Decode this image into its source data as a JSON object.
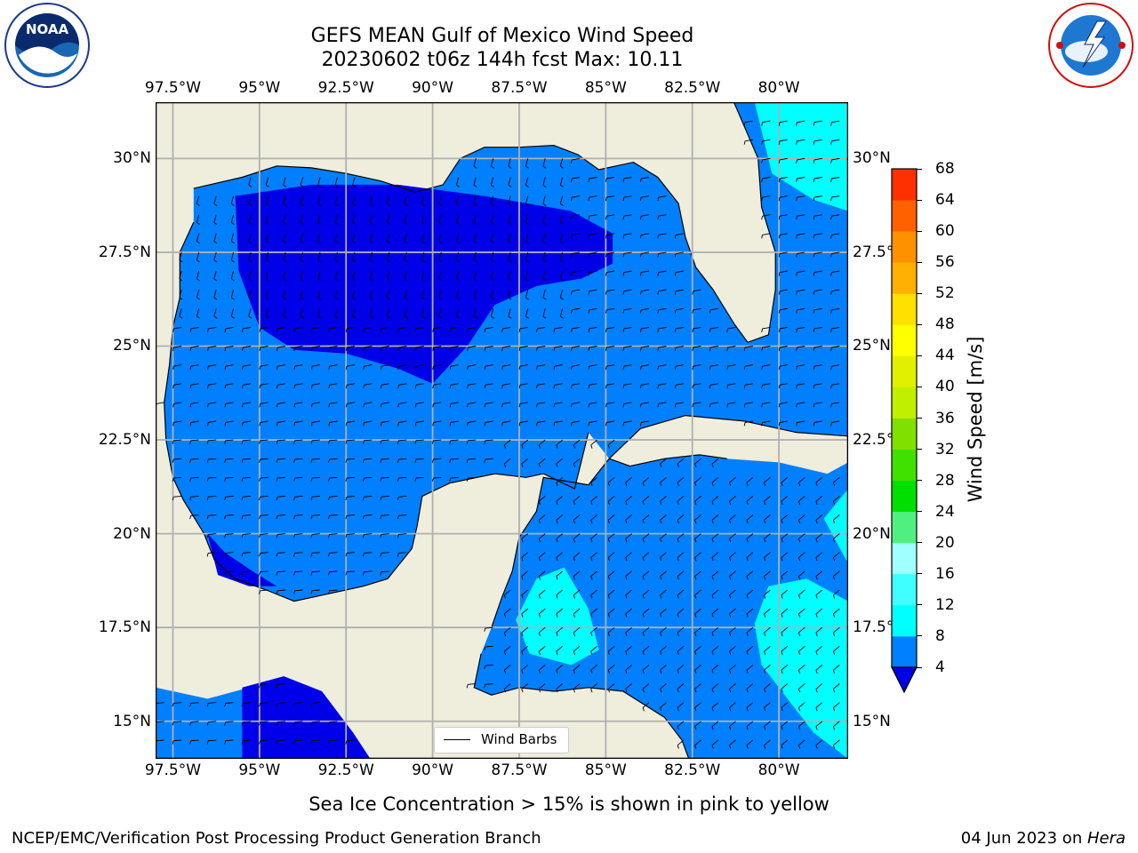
{
  "header": {
    "title_line1": "GEFS MEAN Gulf of Mexico Wind Speed",
    "title_line2": "20230602 t06z 144h fcst   Max: 10.11"
  },
  "logos": {
    "left": {
      "name": "noaa-logo",
      "text": "NOAA",
      "ring_text": "NATIONAL OCEANIC AND ATMOSPHERIC ADMINISTRATION · U.S. DEPARTMENT OF COMMERCE"
    },
    "right": {
      "name": "nws-logo",
      "ring_text": "NATIONAL WEATHER SERVICE"
    }
  },
  "map": {
    "lon_labels": [
      "97.5°W",
      "95°W",
      "92.5°W",
      "90°W",
      "87.5°W",
      "85°W",
      "82.5°W",
      "80°W"
    ],
    "lat_labels": [
      "30°N",
      "27.5°N",
      "25°N",
      "22.5°N",
      "20°N",
      "17.5°N",
      "15°N"
    ],
    "lon_range": [
      -98,
      -78
    ],
    "lat_range": [
      14,
      31.5
    ],
    "legend_label": "Wind Barbs",
    "colors": {
      "land": "#efeddc",
      "ws_4_8": "#0080ff",
      "ws_below_4": "#0000e8",
      "ws_8_12": "#00ffff",
      "coast": "#000000",
      "grid": "#b0b0b0"
    }
  },
  "colorbar": {
    "label": "Wind Speed [m/s]",
    "ticks": [
      "4",
      "8",
      "12",
      "16",
      "20",
      "24",
      "28",
      "32",
      "36",
      "40",
      "44",
      "48",
      "52",
      "56",
      "60",
      "64",
      "68"
    ],
    "colors": [
      "#0080ff",
      "#00ffff",
      "#40ffff",
      "#a0ffff",
      "#50f080",
      "#00e000",
      "#40e000",
      "#80e000",
      "#c0f000",
      "#e0f000",
      "#ffff00",
      "#ffe000",
      "#ffb000",
      "#ff9000",
      "#ff6000",
      "#ff3000",
      "#ff0000"
    ],
    "under_color": "#0000e8"
  },
  "footer": {
    "caption": "Sea Ice Concentration > 15% is shown in pink to yellow",
    "left": "NCEP/EMC/Verification Post Processing Product Generation Branch",
    "date": "04 Jun 2023 on ",
    "machine": "Hera"
  }
}
